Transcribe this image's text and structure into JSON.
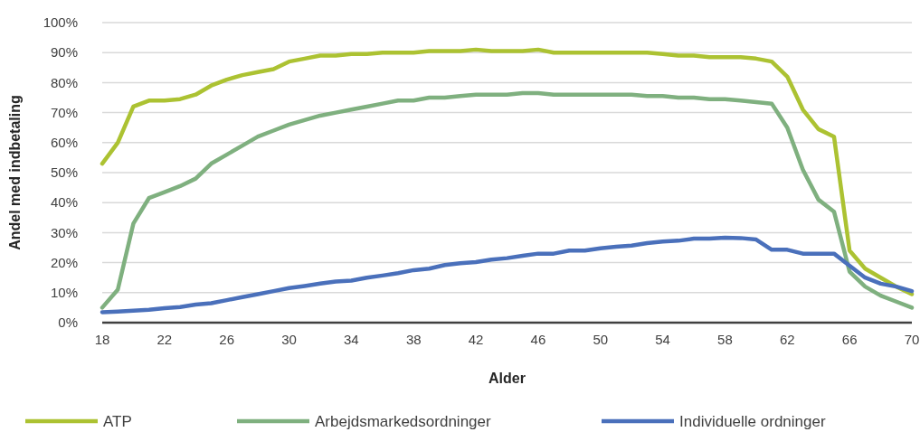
{
  "chart_data": {
    "type": "line",
    "xlabel": "Alder",
    "ylabel": "Andel med indbetaling",
    "x": [
      18,
      19,
      20,
      21,
      22,
      23,
      24,
      25,
      26,
      27,
      28,
      29,
      30,
      31,
      32,
      33,
      34,
      35,
      36,
      37,
      38,
      39,
      40,
      41,
      42,
      43,
      44,
      45,
      46,
      47,
      48,
      49,
      50,
      51,
      52,
      53,
      54,
      55,
      56,
      57,
      58,
      59,
      60,
      61,
      62,
      63,
      64,
      65,
      66,
      67,
      68,
      69,
      70
    ],
    "series": [
      {
        "name": "ATP",
        "color": "#acc232",
        "values": [
          53,
          60,
          72,
          74,
          74,
          74.5,
          76,
          79,
          81,
          82.5,
          83.5,
          84.5,
          87,
          88,
          89,
          89,
          89.5,
          89.5,
          90,
          90,
          90,
          90.5,
          90.5,
          90.5,
          91,
          90.5,
          90.5,
          90.5,
          91,
          90,
          90,
          90,
          90,
          90,
          90,
          90,
          89.5,
          89,
          89,
          88.5,
          88.5,
          88.5,
          88,
          87,
          82,
          71,
          64.5,
          62,
          24,
          18,
          15,
          12,
          9.5
        ]
      },
      {
        "name": "Arbejdsmarkedsordninger",
        "color": "#7fb07f",
        "values": [
          5,
          11,
          33,
          41.5,
          43.5,
          45.5,
          48,
          53,
          56,
          59,
          62,
          64,
          66,
          67.5,
          69,
          70,
          71,
          72,
          73,
          74,
          74,
          75,
          75,
          75.5,
          76,
          76,
          76,
          76.5,
          76.5,
          76,
          76,
          76,
          76,
          76,
          76,
          75.5,
          75.5,
          75,
          75,
          74.5,
          74.5,
          74,
          73.5,
          73,
          65,
          51,
          41,
          37,
          17,
          12,
          9,
          7,
          5
        ]
      },
      {
        "name": "Individuelle ordninger",
        "color": "#4a70bb",
        "values": [
          3.5,
          3.7,
          4,
          4.3,
          4.8,
          5.2,
          6,
          6.5,
          7.5,
          8.5,
          9.5,
          10.5,
          11.5,
          12.2,
          13,
          13.7,
          14,
          15,
          15.7,
          16.5,
          17.5,
          18,
          19.2,
          19.8,
          20.2,
          21,
          21.5,
          22.3,
          23,
          23,
          24,
          24,
          24.8,
          25.3,
          25.7,
          26.5,
          27,
          27.3,
          28,
          28,
          28.3,
          28.2,
          27.7,
          24.3,
          24.3,
          23,
          23,
          23,
          19,
          15,
          13,
          12,
          10.5
        ]
      }
    ],
    "xlim": [
      18,
      70
    ],
    "xticks": [
      18,
      22,
      26,
      30,
      34,
      38,
      42,
      46,
      50,
      54,
      58,
      62,
      66,
      70
    ],
    "ylim": [
      0,
      100
    ],
    "yticks": [
      {
        "value": 0,
        "label": "0%"
      },
      {
        "value": 10,
        "label": "10%"
      },
      {
        "value": 20,
        "label": "20%"
      },
      {
        "value": 30,
        "label": "30%"
      },
      {
        "value": 40,
        "label": "40%"
      },
      {
        "value": 50,
        "label": "50%"
      },
      {
        "value": 60,
        "label": "60%"
      },
      {
        "value": 70,
        "label": "70%"
      },
      {
        "value": 80,
        "label": "80%"
      },
      {
        "value": 90,
        "label": "90%"
      },
      {
        "value": 100,
        "label": "100%"
      }
    ],
    "grid": "y",
    "legend": "bottom",
    "marker": "none",
    "line_style": "solid"
  }
}
